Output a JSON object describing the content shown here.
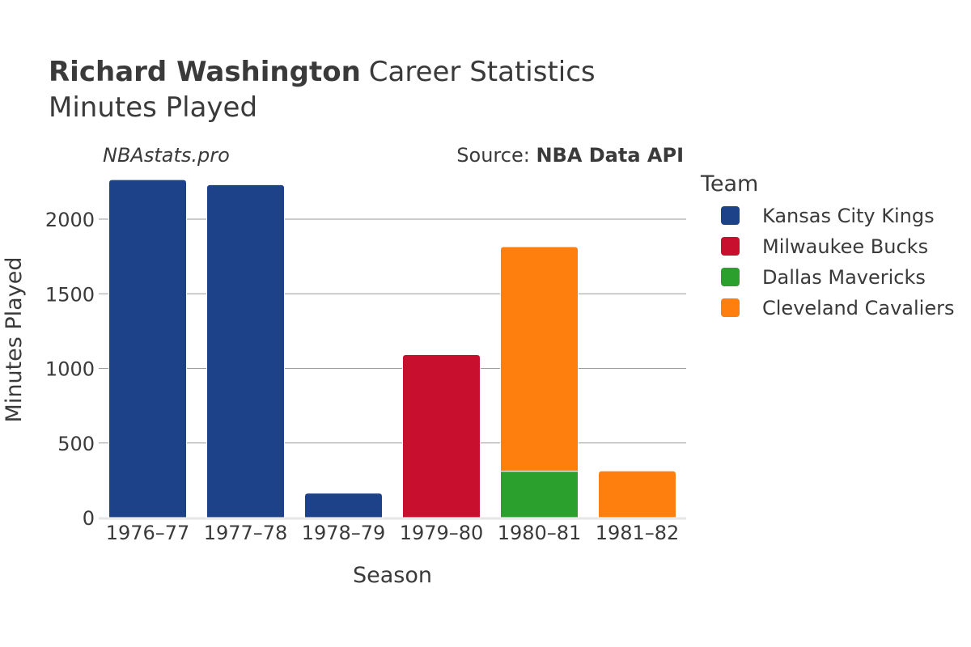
{
  "chart_data": {
    "type": "bar",
    "stacked": true,
    "title_bold": "Richard Washington",
    "title_rest": "Career Statistics",
    "subtitle": "Minutes Played",
    "watermark": "NBAstats.pro",
    "source_prefix": "Source: ",
    "source_name": "NBA Data API",
    "xlabel": "Season",
    "ylabel": "Minutes Played",
    "legend_title": "Team",
    "legend_position": "right",
    "grid": true,
    "ylim": [
      0,
      2300
    ],
    "yticks": [
      0,
      500,
      1000,
      1500,
      2000
    ],
    "categories": [
      "1976–77",
      "1977–78",
      "1978–79",
      "1979–80",
      "1980–81",
      "1981–82"
    ],
    "series": [
      {
        "name": "Kansas City Kings",
        "color": "#1d428a",
        "values": [
          2265,
          2231,
          164,
          0,
          0,
          0
        ]
      },
      {
        "name": "Milwaukee Bucks",
        "color": "#c8102e",
        "values": [
          0,
          0,
          0,
          1092,
          0,
          0
        ]
      },
      {
        "name": "Dallas Mavericks",
        "color": "#2ca02c",
        "values": [
          0,
          0,
          0,
          0,
          311,
          0
        ]
      },
      {
        "name": "Cleveland Cavaliers",
        "color": "#ff7f0e",
        "values": [
          0,
          0,
          0,
          0,
          1505,
          313
        ]
      }
    ]
  }
}
